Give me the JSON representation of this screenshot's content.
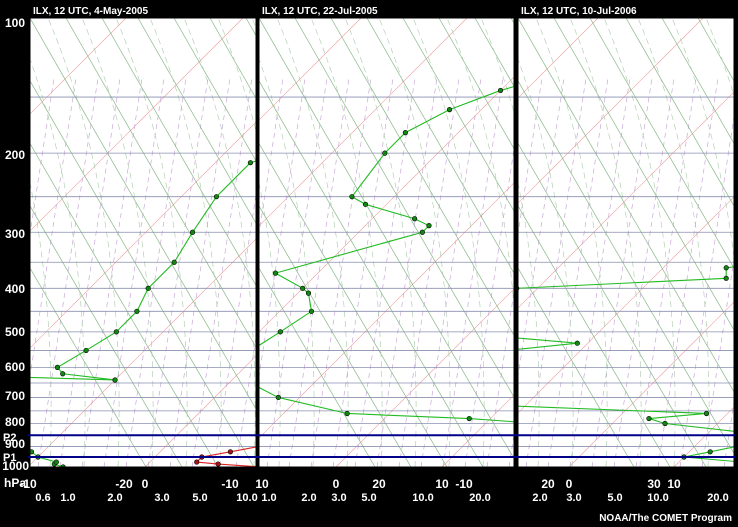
{
  "pressure_levels": [
    "100",
    "200",
    "300",
    "400",
    "500",
    "600",
    "700",
    "800",
    "900",
    "1000"
  ],
  "panels": [
    {
      "title": "ILX, 12 UTC, 4-May-2005",
      "temperature_ticks": [
        "-20",
        "-10",
        "0",
        "10",
        "20"
      ],
      "mixing_ratio_ticks": [
        "0.6",
        "1.0",
        "2.0",
        "3.0",
        "5.0",
        "10.0"
      ],
      "temperature_profile": [
        [
          1000,
          10
        ],
        [
          985,
          6
        ],
        [
          975,
          4
        ],
        [
          950,
          4
        ],
        [
          925,
          6
        ],
        [
          900,
          8
        ],
        [
          850,
          9
        ],
        [
          800,
          10
        ],
        [
          750,
          10
        ],
        [
          700,
          11
        ],
        [
          650,
          11
        ],
        [
          600,
          11
        ],
        [
          550,
          11
        ],
        [
          500,
          10
        ],
        [
          450,
          8
        ],
        [
          400,
          6
        ],
        [
          350,
          4
        ],
        [
          300,
          2
        ],
        [
          250,
          1
        ],
        [
          210,
          1
        ],
        [
          200,
          2
        ],
        [
          185,
          6
        ],
        [
          170,
          10
        ],
        [
          150,
          15
        ],
        [
          140,
          19
        ]
      ],
      "dewpoint_profile": [
        [
          1000,
          -7
        ],
        [
          985,
          -8
        ],
        [
          975,
          -8
        ],
        [
          950,
          -10
        ],
        [
          925,
          -11
        ],
        [
          900,
          -12
        ],
        [
          850,
          -14
        ],
        [
          800,
          -18
        ],
        [
          790,
          -20
        ],
        [
          780,
          -22
        ],
        [
          750,
          -22
        ],
        [
          720,
          -22
        ],
        [
          700,
          -21
        ],
        [
          680,
          -21
        ],
        [
          660,
          -20
        ],
        [
          640,
          -20
        ],
        [
          630,
          -19
        ],
        [
          640,
          -10
        ],
        [
          620,
          -15
        ],
        [
          600,
          -16
        ],
        [
          550,
          -15
        ],
        [
          500,
          -14
        ],
        [
          450,
          -14
        ],
        [
          400,
          -15
        ],
        [
          350,
          -15
        ],
        [
          300,
          -16
        ],
        [
          250,
          -17
        ],
        [
          210,
          -17
        ],
        [
          200,
          -15
        ],
        [
          180,
          -13
        ],
        [
          160,
          -11
        ],
        [
          140,
          -10
        ],
        [
          120,
          -7
        ],
        [
          105,
          -4
        ],
        [
          100,
          -3
        ]
      ]
    },
    {
      "title": "ILX, 12 UTC, 22-Jul-2005",
      "temperature_ticks": [
        "-20",
        "-10",
        "0",
        "10",
        "20",
        "30"
      ],
      "mixing_ratio_ticks": [
        "1.0",
        "2.0",
        "3.0",
        "5.0",
        "10.0",
        "20.0"
      ],
      "temperature_profile": [
        [
          1000,
          22
        ],
        [
          980,
          22
        ],
        [
          960,
          23
        ],
        [
          950,
          25
        ],
        [
          925,
          26
        ],
        [
          900,
          25
        ],
        [
          875,
          24
        ],
        [
          850,
          23
        ],
        [
          800,
          22
        ],
        [
          750,
          22
        ],
        [
          700,
          20
        ],
        [
          650,
          19
        ],
        [
          600,
          18
        ],
        [
          550,
          17
        ],
        [
          500,
          15
        ],
        [
          450,
          13
        ],
        [
          400,
          11
        ],
        [
          380,
          11
        ],
        [
          350,
          11
        ],
        [
          300,
          10
        ],
        [
          250,
          8
        ],
        [
          200,
          3
        ],
        [
          170,
          2
        ],
        [
          150,
          2
        ],
        [
          130,
          2
        ],
        [
          115,
          4
        ],
        [
          105,
          5
        ],
        [
          100,
          6
        ]
      ],
      "dewpoint_profile": [
        [
          1000,
          20
        ],
        [
          990,
          20
        ],
        [
          975,
          21
        ],
        [
          950,
          20
        ],
        [
          930,
          19
        ],
        [
          900,
          18
        ],
        [
          875,
          17
        ],
        [
          850,
          16
        ],
        [
          800,
          15
        ],
        [
          780,
          8
        ],
        [
          760,
          -4
        ],
        [
          700,
          -12
        ],
        [
          650,
          -16
        ],
        [
          600,
          -19
        ],
        [
          575,
          -20
        ],
        [
          550,
          -19
        ],
        [
          500,
          -18
        ],
        [
          450,
          -17
        ],
        [
          410,
          -19
        ],
        [
          400,
          -20
        ],
        [
          370,
          -24
        ],
        [
          300,
          -14
        ],
        [
          290,
          -14
        ],
        [
          280,
          -16
        ],
        [
          260,
          -22
        ],
        [
          250,
          -24
        ],
        [
          200,
          -25
        ],
        [
          180,
          -25
        ],
        [
          160,
          -23
        ],
        [
          145,
          -20
        ],
        [
          130,
          -15
        ],
        [
          115,
          -12
        ],
        [
          105,
          -8
        ],
        [
          100,
          -5
        ]
      ]
    },
    {
      "title": "ILX, 12 UTC, 10-Jul-2006",
      "temperature_ticks": [
        "-10",
        "0",
        "10",
        "20",
        "30"
      ],
      "mixing_ratio_ticks": [
        "2.0",
        "3.0",
        "5.0",
        "10.0",
        "20.0"
      ],
      "temperature_profile": [
        [
          1000,
          20
        ],
        [
          985,
          21
        ],
        [
          975,
          23
        ],
        [
          950,
          25
        ],
        [
          925,
          26
        ],
        [
          900,
          24
        ],
        [
          875,
          23
        ],
        [
          850,
          22
        ],
        [
          800,
          22
        ],
        [
          750,
          21
        ],
        [
          700,
          20
        ],
        [
          650,
          19
        ],
        [
          600,
          18
        ],
        [
          550,
          17
        ],
        [
          500,
          16
        ],
        [
          450,
          13
        ],
        [
          400,
          11
        ],
        [
          370,
          11
        ],
        [
          350,
          11
        ],
        [
          300,
          9
        ],
        [
          280,
          8
        ],
        [
          250,
          6
        ],
        [
          230,
          4
        ],
        [
          210,
          2
        ],
        [
          200,
          2
        ],
        [
          180,
          5
        ],
        [
          160,
          7
        ],
        [
          140,
          5
        ],
        [
          120,
          5
        ],
        [
          110,
          6
        ],
        [
          100,
          10
        ]
      ],
      "dewpoint_profile": [
        [
          1000,
          17
        ],
        [
          985,
          16
        ],
        [
          975,
          16
        ],
        [
          950,
          10
        ],
        [
          925,
          12
        ],
        [
          900,
          14
        ],
        [
          875,
          16
        ],
        [
          850,
          16
        ],
        [
          800,
          5
        ],
        [
          780,
          3
        ],
        [
          760,
          8
        ],
        [
          730,
          -12
        ],
        [
          700,
          -16
        ],
        [
          650,
          -18
        ],
        [
          600,
          -20
        ],
        [
          550,
          -17
        ],
        [
          530,
          -11
        ],
        [
          510,
          -20
        ],
        [
          500,
          -22
        ],
        [
          460,
          -23
        ],
        [
          430,
          -23
        ],
        [
          410,
          -23
        ],
        [
          400,
          -22
        ],
        [
          380,
          -3
        ],
        [
          360,
          -4
        ],
        [
          350,
          0
        ],
        [
          330,
          -4
        ],
        [
          310,
          -3
        ],
        [
          300,
          -5
        ],
        [
          280,
          -4
        ],
        [
          260,
          -5
        ],
        [
          250,
          -5
        ],
        [
          230,
          -5
        ],
        [
          210,
          -4
        ],
        [
          200,
          -5
        ],
        [
          180,
          -5
        ],
        [
          160,
          -6
        ],
        [
          140,
          -6
        ],
        [
          130,
          -7
        ],
        [
          120,
          -8
        ],
        [
          110,
          -8
        ],
        [
          100,
          8
        ]
      ]
    }
  ],
  "level_markers": [
    {
      "label": "P2",
      "pressure": 850
    },
    {
      "label": "P1",
      "pressure": 950
    }
  ],
  "axis_unit_label": "hPa",
  "credit": "NOAA/The COMET Program",
  "colors": {
    "background": "#ffffff",
    "frame": "#000000",
    "isobar": "#8a8fb0",
    "isotherm": "#ee9999",
    "dry_adiabat": "#88b888",
    "moist_adiabat": "#a9c9a9",
    "mixing_ratio": "#c9a9d9",
    "temperature": "#dd2222",
    "dewpoint": "#22bb22",
    "temperature_marker": "#aa1111",
    "dewpoint_marker": "#118811",
    "level_marker": "#000088"
  }
}
